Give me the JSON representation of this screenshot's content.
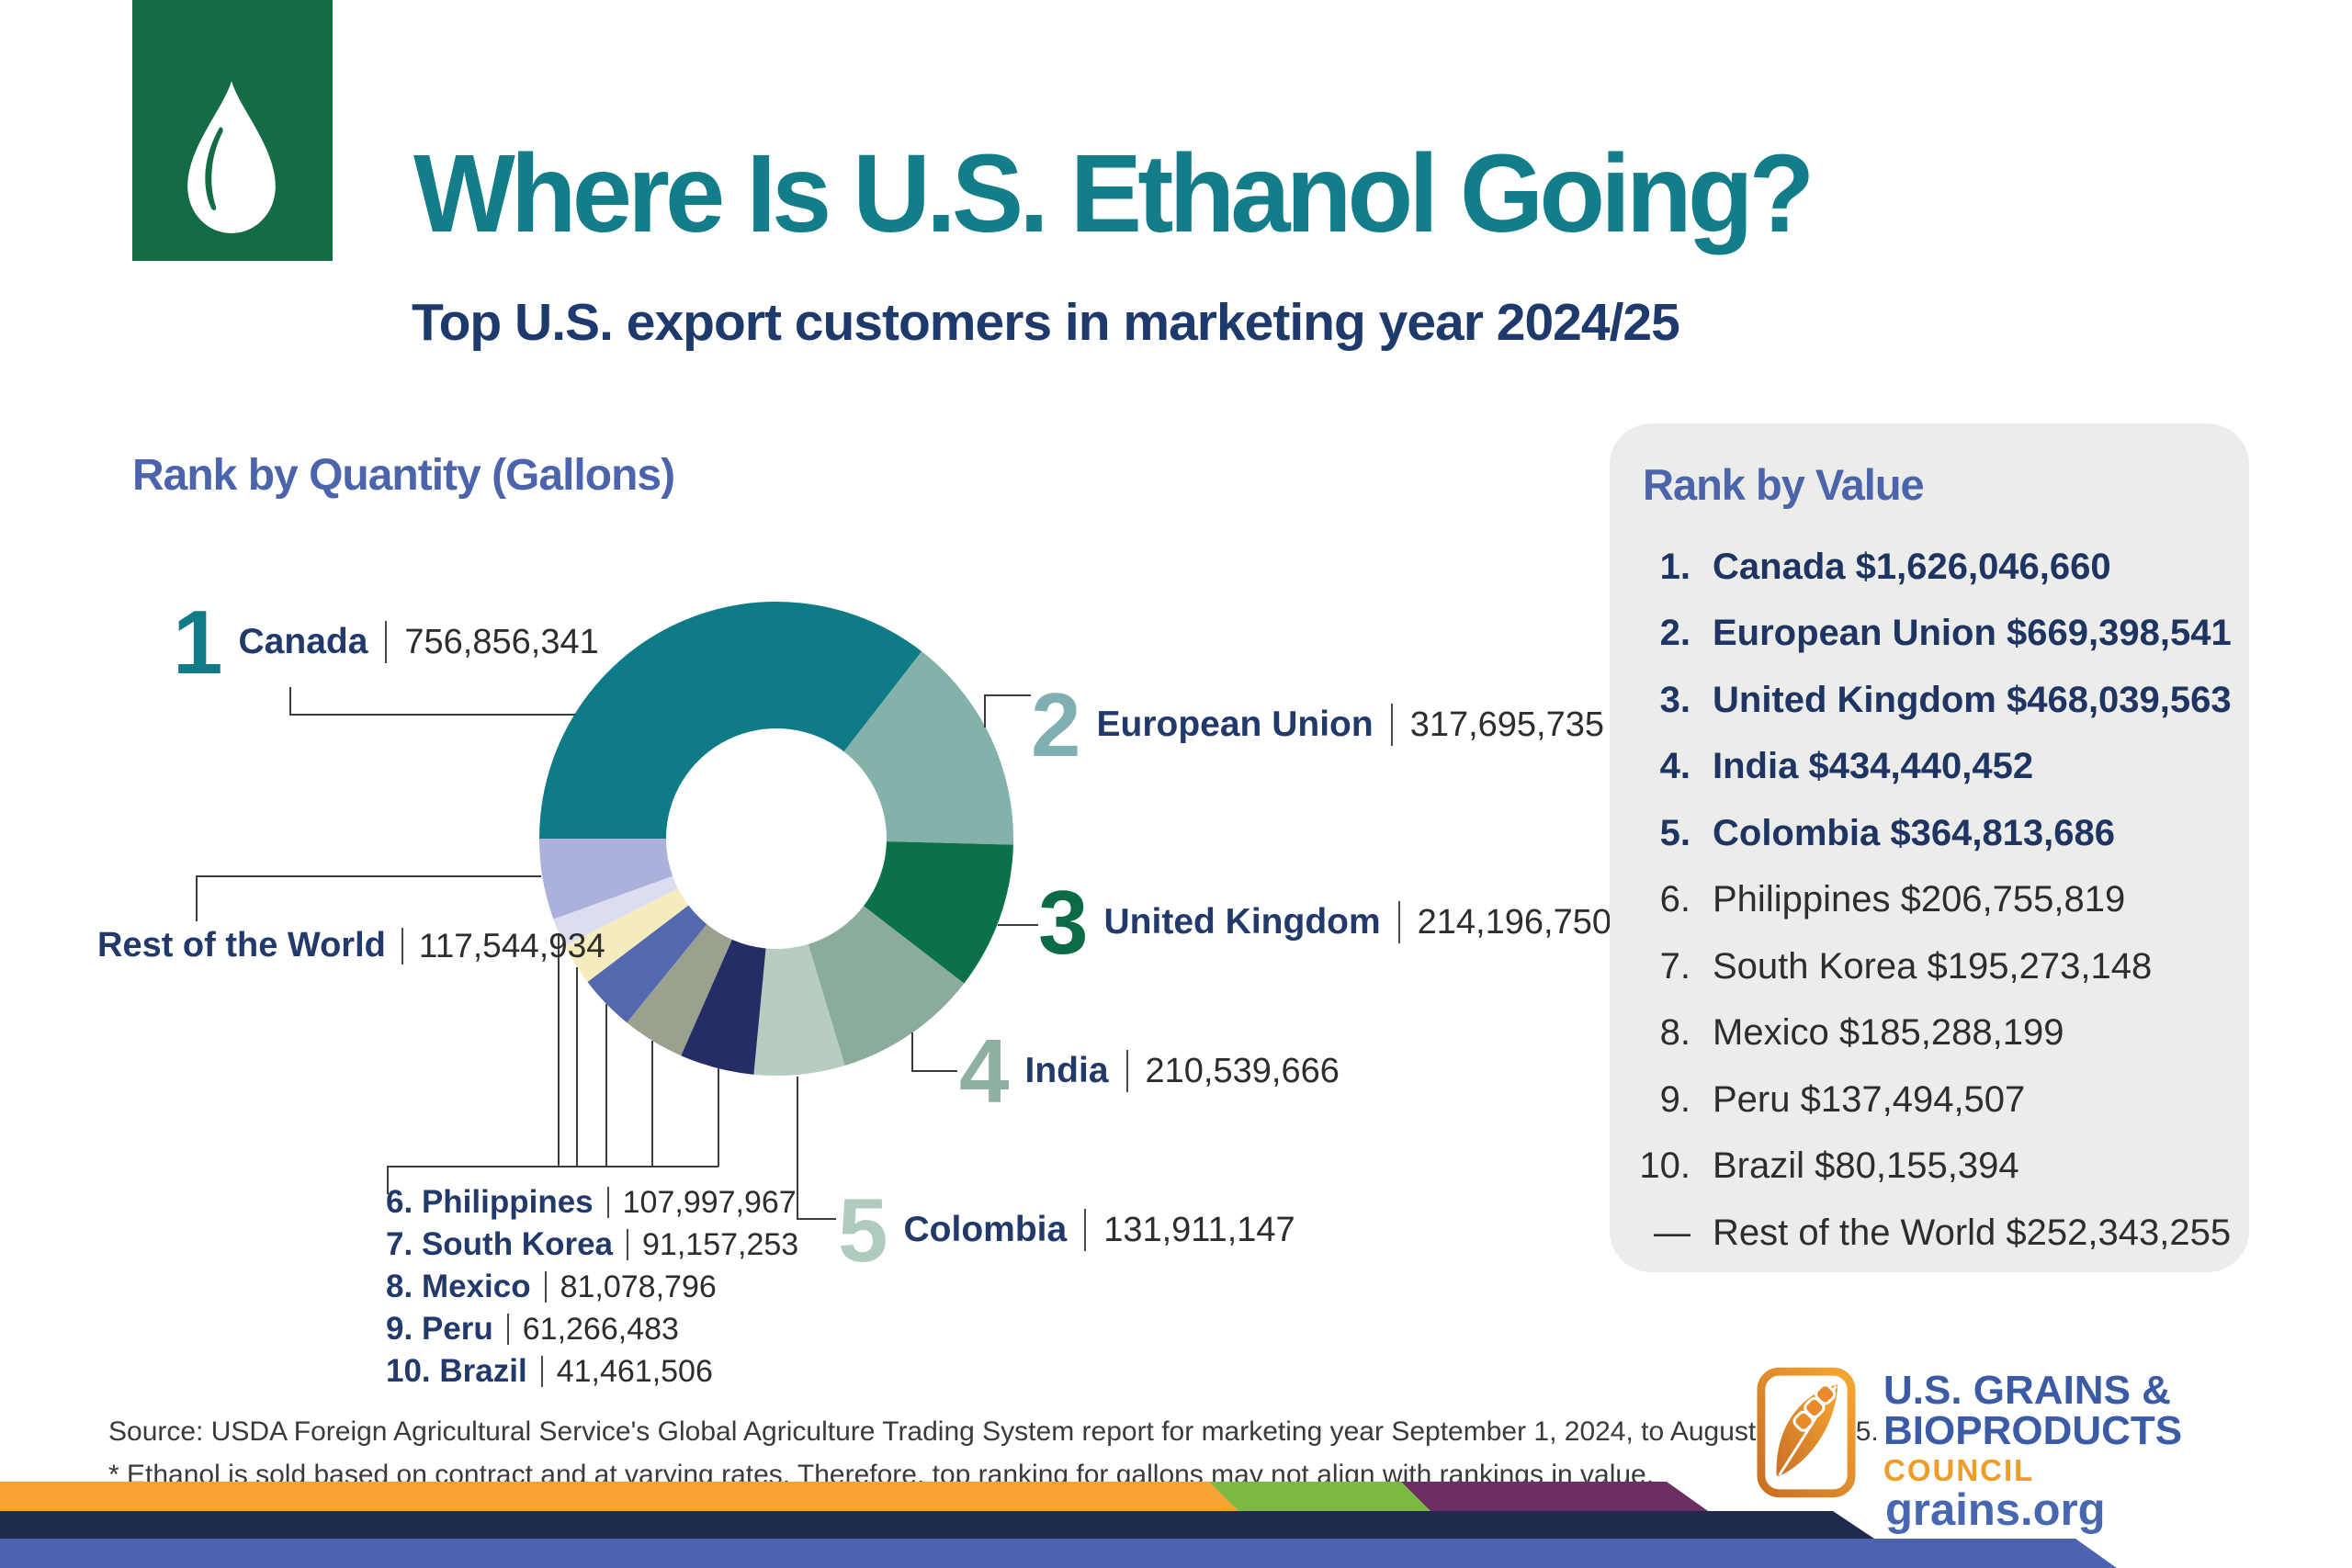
{
  "header": {
    "title": "Where Is U.S. Ethanol Going?",
    "subtitle": "Top U.S. export customers in marketing year 2024/25"
  },
  "quantity": {
    "heading": "Rank by Quantity (Gallons)",
    "top5": [
      {
        "rank": "1",
        "name": "Canada",
        "value": "756,856,341",
        "color": "#117C87"
      },
      {
        "rank": "2",
        "name": "European Union",
        "value": "317,695,735",
        "color": "#7FAFB3"
      },
      {
        "rank": "3",
        "name": "United Kingdom",
        "value": "214,196,750",
        "color": "#0B6B45"
      },
      {
        "rank": "4",
        "name": "India",
        "value": "210,539,666",
        "color": "#8FAFA0"
      },
      {
        "rank": "5",
        "name": "Colombia",
        "value": "131,911,147",
        "color": "#AFCBBE"
      }
    ],
    "others": [
      {
        "rank": "6.",
        "name": "Philippines",
        "value": "107,997,967"
      },
      {
        "rank": "7.",
        "name": "South Korea",
        "value": "91,157,253"
      },
      {
        "rank": "8.",
        "name": "Mexico",
        "value": "81,078,796"
      },
      {
        "rank": "9.",
        "name": "Peru",
        "value": "61,266,483"
      },
      {
        "rank": "10.",
        "name": "Brazil",
        "value": "41,461,506"
      }
    ],
    "rest": {
      "name": "Rest of the World",
      "value": "117,544,934"
    }
  },
  "chart_data": {
    "type": "pie",
    "donut": true,
    "start_angle_deg": 270,
    "direction": "clockwise",
    "title": "Rank by Quantity (Gallons)",
    "unit": "gallons",
    "slices": [
      {
        "label": "Canada",
        "value": 756856341,
        "color": "#0F7B87"
      },
      {
        "label": "European Union",
        "value": 317695735,
        "color": "#85B1AB"
      },
      {
        "label": "United Kingdom",
        "value": 214196750,
        "color": "#0A7148"
      },
      {
        "label": "India",
        "value": 210539666,
        "color": "#8BAC9B"
      },
      {
        "label": "Colombia",
        "value": 131911147,
        "color": "#B7CDC0"
      },
      {
        "label": "Philippines",
        "value": 107997967,
        "color": "#232E66"
      },
      {
        "label": "South Korea",
        "value": 91157253,
        "color": "#9BA18F"
      },
      {
        "label": "Mexico",
        "value": 81078796,
        "color": "#5468AF"
      },
      {
        "label": "Peru",
        "value": 61266483,
        "color": "#F4ECBD"
      },
      {
        "label": "Brazil",
        "value": 41461506,
        "color": "#DBDDF0"
      },
      {
        "label": "Rest of the World",
        "value": 117544934,
        "color": "#ACB1DB"
      }
    ]
  },
  "value_panel": {
    "heading": "Rank by Value",
    "items": [
      {
        "num": "1.",
        "text": "Canada $1,626,046,660"
      },
      {
        "num": "2.",
        "text": "European Union $669,398,541"
      },
      {
        "num": "3.",
        "text": "United Kingdom $468,039,563"
      },
      {
        "num": "4.",
        "text": "India $434,440,452"
      },
      {
        "num": "5.",
        "text": "Colombia $364,813,686"
      },
      {
        "num": "6.",
        "text": "Philippines $206,755,819"
      },
      {
        "num": "7.",
        "text": "South Korea $195,273,148"
      },
      {
        "num": "8.",
        "text": "Mexico $185,288,199"
      },
      {
        "num": "9.",
        "text": "Peru $137,494,507"
      },
      {
        "num": "10.",
        "text": "Brazil $80,155,394"
      },
      {
        "num": "—",
        "text": "Rest of the World $252,343,255"
      }
    ]
  },
  "footer": {
    "source_line1": "Source: USDA Foreign Agricultural Service's Global Agriculture Trading System report for marketing year September 1, 2024, to August 31, 2025.",
    "source_line2": "* Ethanol is sold based on contract and at varying rates. Therefore, top ranking for gallons may not align with rankings in value.",
    "logo": {
      "line1": "U.S. GRAINS &",
      "line2": "BIOPRODUCTS",
      "line3": "COUNCIL",
      "url": "grains.org"
    }
  },
  "colors": {
    "title_teal": "#137E8A",
    "navy_text": "#1E3A6D",
    "heading_blue": "#4C64AB",
    "panel_bg": "#ECEDEA",
    "brand_green_box": "#146C44",
    "stripe_orange": "#F6A233",
    "stripe_green": "#7CB842",
    "stripe_purple": "#6B2F63",
    "stripe_navy": "#1F2A4D",
    "stripe_blue": "#4C64B0",
    "logo_orange": "#E98A2B"
  }
}
